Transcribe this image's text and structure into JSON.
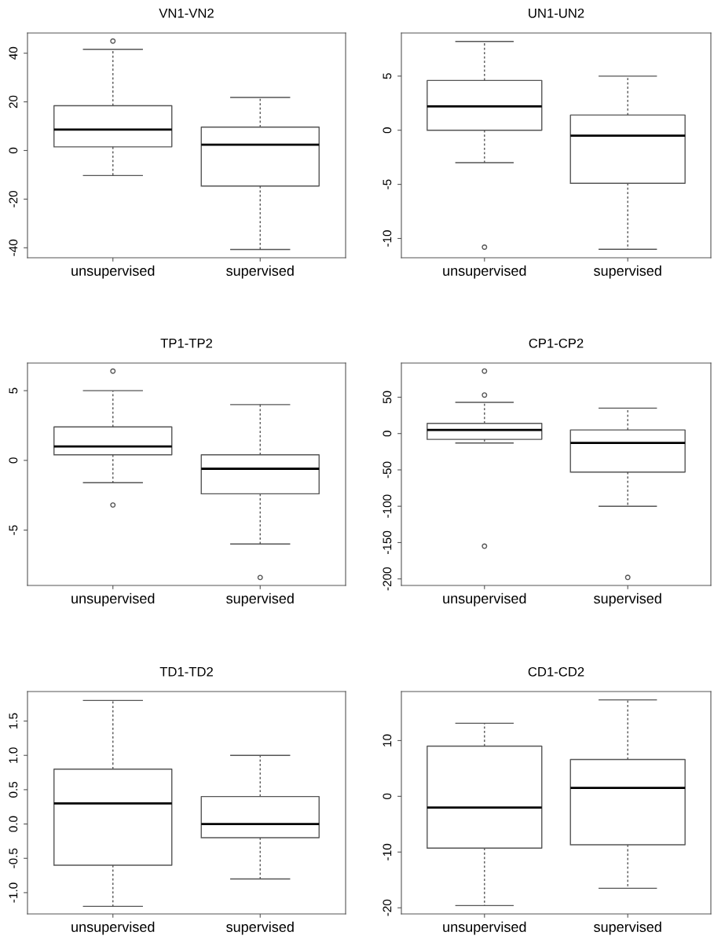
{
  "chart_data": [
    {
      "type": "box",
      "title": "VN1-VN2",
      "categories": [
        "unsupervised",
        "supervised"
      ],
      "ylim": [
        -44.1,
        48.3
      ],
      "yticks": [
        -40,
        -20,
        0,
        20,
        40
      ],
      "boxes": [
        {
          "low": -10.3,
          "q1": 1.5,
          "median": 8.6,
          "q3": 18.4,
          "high": 41.6,
          "outliers": [
            45
          ]
        },
        {
          "low": -40.7,
          "q1": -14.6,
          "median": 2.4,
          "q3": 9.6,
          "high": 21.8
        }
      ]
    },
    {
      "type": "box",
      "title": "UN1-UN2",
      "categories": [
        "unsupervised",
        "supervised"
      ],
      "ylim": [
        -11.78,
        8.98
      ],
      "yticks": [
        -10,
        -5,
        0,
        5
      ],
      "boxes": [
        {
          "low": -3.0,
          "q1": 0,
          "median": 2.2,
          "q3": 4.6,
          "high": 8.2,
          "outliers": [
            -10.8
          ]
        },
        {
          "low": -11.0,
          "q1": -4.9,
          "median": -0.5,
          "q3": 1.4,
          "high": 5.0
        }
      ]
    },
    {
      "type": "box",
      "title": "TP1-TP2",
      "categories": [
        "unsupervised",
        "supervised"
      ],
      "ylim": [
        -8.97,
        6.98
      ],
      "yticks": [
        -5,
        0,
        5
      ],
      "boxes": [
        {
          "low": -1.6,
          "q1": 0.4,
          "median": 1.0,
          "q3": 2.4,
          "high": 5.0,
          "outliers": [
            6.4,
            -3.2
          ]
        },
        {
          "low": -6.0,
          "q1": -2.4,
          "median": -0.6,
          "q3": 0.4,
          "high": 4.0,
          "outliers": [
            -8.4
          ]
        }
      ]
    },
    {
      "type": "box",
      "title": "CP1-CP2",
      "categories": [
        "unsupervised",
        "supervised"
      ],
      "ylim": [
        -209,
        97
      ],
      "yticks": [
        -200,
        -150,
        -100,
        -50,
        0,
        50
      ],
      "boxes": [
        {
          "low": -13,
          "q1": -8,
          "median": 5,
          "q3": 14,
          "high": 43,
          "outliers": [
            86,
            53,
            -155
          ]
        },
        {
          "low": -100,
          "q1": -53,
          "median": -13,
          "q3": 5,
          "high": 35,
          "outliers": [
            -198
          ]
        }
      ]
    },
    {
      "type": "box",
      "title": "TD1-TD2",
      "categories": [
        "unsupervised",
        "supervised"
      ],
      "ylim": [
        -1.31,
        1.93
      ],
      "yticks": [
        {
          "value": -1.0,
          "label": "-1.0"
        },
        {
          "value": -0.5,
          "label": "-0.5"
        },
        {
          "value": 0.0,
          "label": "0.0"
        },
        {
          "value": 0.5,
          "label": "0.5"
        },
        {
          "value": 1.0,
          "label": "1.0"
        },
        {
          "value": 1.5,
          "label": "1.5"
        }
      ],
      "boxes": [
        {
          "low": -1.2,
          "q1": -0.6,
          "median": 0.3,
          "q3": 0.8,
          "high": 1.8
        },
        {
          "low": -0.8,
          "q1": -0.2,
          "median": 0.0,
          "q3": 0.4,
          "high": 1.0
        }
      ]
    },
    {
      "type": "box",
      "title": "CD1-CD2",
      "categories": [
        "unsupervised",
        "supervised"
      ],
      "ylim": [
        -21.1,
        18.8
      ],
      "yticks": [
        -20,
        -10,
        0,
        10
      ],
      "boxes": [
        {
          "low": -19.6,
          "q1": -9.3,
          "median": -2.0,
          "q3": 9.0,
          "high": 13.1
        },
        {
          "low": -16.5,
          "q1": -8.7,
          "median": 1.5,
          "q3": 6.6,
          "high": 17.3
        }
      ]
    }
  ]
}
